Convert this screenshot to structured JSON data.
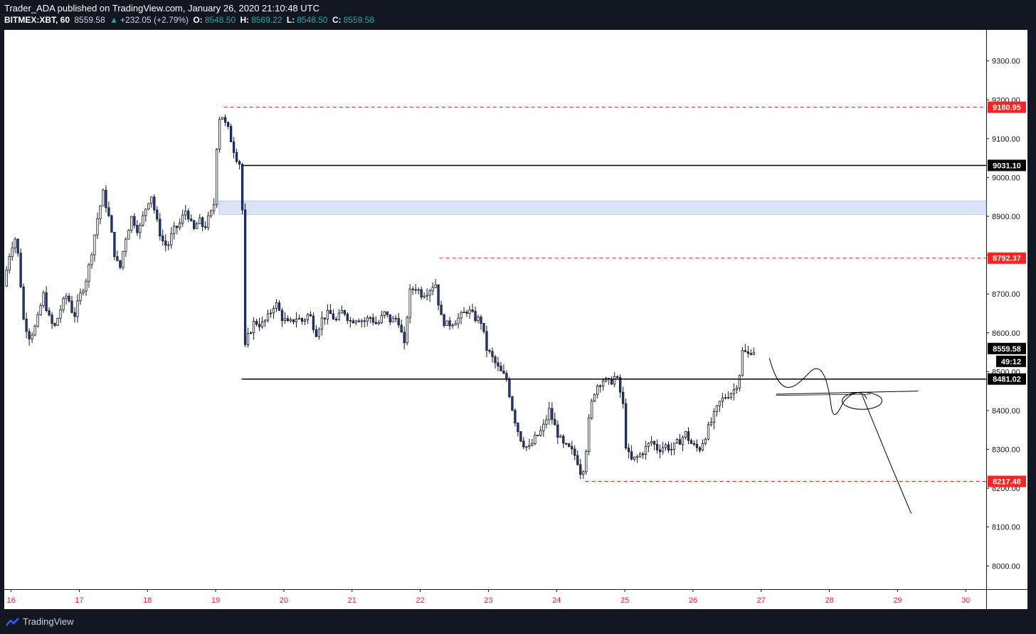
{
  "header": {
    "published": "Trader_ADA published on TradingView.com, January 26, 2020 21:10:48 UTC",
    "symbol": "BITMEX:XBT, 60",
    "price": "8559.58",
    "change_arrow": "▲",
    "change": "+232.05 (+2.79%)",
    "o_label": "O:",
    "o": "8548.50",
    "h_label": "H:",
    "h": "8569.22",
    "l_label": "L:",
    "l": "8548.50",
    "c_label": "C:",
    "c": "8559.58"
  },
  "footer": {
    "brand": "TradingView",
    "logo_icon": "tradingview-logo-icon"
  },
  "colors": {
    "up": "#ffffff",
    "down": "#1e3a8a",
    "red": "#ff2222",
    "green": "#26a69a",
    "zone": "#dbe3f8"
  },
  "chart_data": {
    "type": "candlestick",
    "title": "",
    "xlabel": "",
    "ylabel": "",
    "ylim": [
      7940,
      9380
    ],
    "y_ticks": [
      "8000.00",
      "8100.00",
      "8200.00",
      "8300.00",
      "8400.00",
      "8500.00",
      "8600.00",
      "8700.00",
      "8800.00",
      "8900.00",
      "9000.00",
      "9100.00",
      "9200.00",
      "9300.00"
    ],
    "x_labels": [
      {
        "day": 16,
        "label": "16"
      },
      {
        "day": 17,
        "label": "17"
      },
      {
        "day": 18,
        "label": "18"
      },
      {
        "day": 19,
        "label": "19"
      },
      {
        "day": 20,
        "label": "20"
      },
      {
        "day": 21,
        "label": "21"
      },
      {
        "day": 22,
        "label": "22"
      },
      {
        "day": 23,
        "label": "23"
      },
      {
        "day": 24,
        "label": "24"
      },
      {
        "day": 25,
        "label": "25"
      },
      {
        "day": 26,
        "label": "26"
      },
      {
        "day": 27,
        "label": "27"
      },
      {
        "day": 28,
        "label": "28"
      },
      {
        "day": 29,
        "label": "29"
      },
      {
        "day": 30,
        "label": "30"
      }
    ],
    "x_range": [
      15.9,
      30.3
    ],
    "price_series": [
      [
        15.92,
        8720
      ],
      [
        16.0,
        8800
      ],
      [
        16.08,
        8850
      ],
      [
        16.15,
        8780
      ],
      [
        16.2,
        8640
      ],
      [
        16.3,
        8590
      ],
      [
        16.4,
        8620
      ],
      [
        16.5,
        8700
      ],
      [
        16.58,
        8640
      ],
      [
        16.66,
        8610
      ],
      [
        16.75,
        8660
      ],
      [
        16.85,
        8700
      ],
      [
        16.95,
        8640
      ],
      [
        17.05,
        8700
      ],
      [
        17.15,
        8750
      ],
      [
        17.22,
        8820
      ],
      [
        17.3,
        8900
      ],
      [
        17.38,
        8960
      ],
      [
        17.46,
        8900
      ],
      [
        17.55,
        8800
      ],
      [
        17.62,
        8760
      ],
      [
        17.7,
        8840
      ],
      [
        17.8,
        8900
      ],
      [
        17.9,
        8860
      ],
      [
        18.0,
        8920
      ],
      [
        18.08,
        8960
      ],
      [
        18.16,
        8890
      ],
      [
        18.24,
        8840
      ],
      [
        18.32,
        8820
      ],
      [
        18.4,
        8860
      ],
      [
        18.5,
        8880
      ],
      [
        18.6,
        8920
      ],
      [
        18.7,
        8860
      ],
      [
        18.78,
        8890
      ],
      [
        18.86,
        8870
      ],
      [
        18.94,
        8900
      ],
      [
        19.0,
        8920
      ],
      [
        19.05,
        9100
      ],
      [
        19.1,
        9175
      ],
      [
        19.16,
        9140
      ],
      [
        19.22,
        9120
      ],
      [
        19.28,
        9080
      ],
      [
        19.34,
        9050
      ],
      [
        19.4,
        9030
      ],
      [
        19.43,
        8860
      ],
      [
        19.46,
        8560
      ],
      [
        19.52,
        8600
      ],
      [
        19.6,
        8630
      ],
      [
        19.7,
        8620
      ],
      [
        19.8,
        8640
      ],
      [
        19.9,
        8680
      ],
      [
        20.0,
        8640
      ],
      [
        20.1,
        8620
      ],
      [
        20.2,
        8640
      ],
      [
        20.3,
        8630
      ],
      [
        20.4,
        8650
      ],
      [
        20.5,
        8600
      ],
      [
        20.6,
        8640
      ],
      [
        20.7,
        8650
      ],
      [
        20.8,
        8630
      ],
      [
        20.9,
        8660
      ],
      [
        21.0,
        8630
      ],
      [
        21.1,
        8640
      ],
      [
        21.2,
        8630
      ],
      [
        21.3,
        8640
      ],
      [
        21.4,
        8620
      ],
      [
        21.5,
        8650
      ],
      [
        21.6,
        8630
      ],
      [
        21.7,
        8640
      ],
      [
        21.8,
        8560
      ],
      [
        21.86,
        8700
      ],
      [
        21.95,
        8720
      ],
      [
        22.05,
        8700
      ],
      [
        22.15,
        8710
      ],
      [
        22.25,
        8730
      ],
      [
        22.33,
        8640
      ],
      [
        22.42,
        8620
      ],
      [
        22.52,
        8630
      ],
      [
        22.62,
        8640
      ],
      [
        22.72,
        8660
      ],
      [
        22.82,
        8640
      ],
      [
        22.92,
        8630
      ],
      [
        23.0,
        8560
      ],
      [
        23.1,
        8530
      ],
      [
        23.2,
        8500
      ],
      [
        23.3,
        8480
      ],
      [
        23.36,
        8420
      ],
      [
        23.44,
        8360
      ],
      [
        23.52,
        8320
      ],
      [
        23.62,
        8300
      ],
      [
        23.72,
        8330
      ],
      [
        23.82,
        8350
      ],
      [
        23.92,
        8400
      ],
      [
        24.02,
        8350
      ],
      [
        24.12,
        8310
      ],
      [
        24.22,
        8300
      ],
      [
        24.32,
        8280
      ],
      [
        24.4,
        8230
      ],
      [
        24.46,
        8300
      ],
      [
        24.52,
        8400
      ],
      [
        24.6,
        8460
      ],
      [
        24.7,
        8480
      ],
      [
        24.8,
        8470
      ],
      [
        24.9,
        8490
      ],
      [
        25.0,
        8420
      ],
      [
        25.05,
        8300
      ],
      [
        25.12,
        8270
      ],
      [
        25.22,
        8280
      ],
      [
        25.32,
        8300
      ],
      [
        25.42,
        8320
      ],
      [
        25.52,
        8300
      ],
      [
        25.62,
        8310
      ],
      [
        25.72,
        8300
      ],
      [
        25.82,
        8320
      ],
      [
        25.92,
        8340
      ],
      [
        26.02,
        8310
      ],
      [
        26.12,
        8300
      ],
      [
        26.22,
        8340
      ],
      [
        26.32,
        8380
      ],
      [
        26.42,
        8420
      ],
      [
        26.52,
        8440
      ],
      [
        26.62,
        8450
      ],
      [
        26.7,
        8480
      ],
      [
        26.76,
        8560
      ],
      [
        26.82,
        8540
      ],
      [
        26.88,
        8555
      ]
    ],
    "lines": [
      {
        "kind": "dashed",
        "price": 9180.95,
        "x_from": 19.12,
        "color": "red",
        "label": "9180.95"
      },
      {
        "kind": "solid",
        "price": 9031.1,
        "x_from": 19.4,
        "color": "black",
        "label": "9031.10"
      },
      {
        "kind": "dashed",
        "price": 8792.37,
        "x_from": 22.28,
        "color": "red",
        "label": "8792.37"
      },
      {
        "kind": "solid",
        "price": 8481.02,
        "x_from": 19.38,
        "color": "black",
        "label": "8481.02"
      },
      {
        "kind": "dashed",
        "price": 8217.48,
        "x_from": 24.42,
        "color": "red",
        "label": "8217.48"
      }
    ],
    "zone": {
      "low": 8905,
      "high": 8940
    },
    "last_price": {
      "price": 8559.58,
      "label": "8559.58",
      "countdown": "49:12"
    }
  }
}
